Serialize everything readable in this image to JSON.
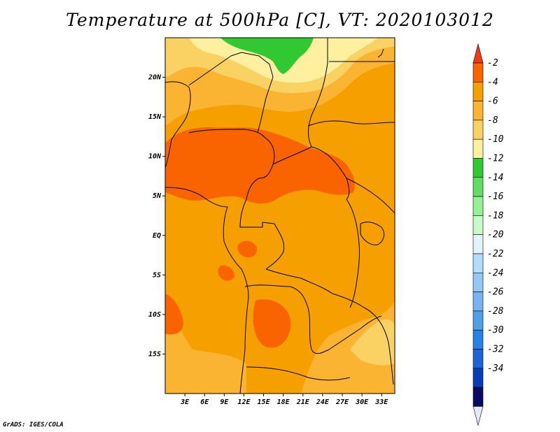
{
  "title": "Temperature at 500hPa [C], VT: 2020103012",
  "credit": "GrADS: IGES/COLA",
  "map": {
    "lon_range": [
      0,
      35
    ],
    "lat_range": [
      -20,
      25
    ],
    "lat_ticks": [
      {
        "value": 20,
        "label": "20N"
      },
      {
        "value": 15,
        "label": "15N"
      },
      {
        "value": 10,
        "label": "10N"
      },
      {
        "value": 5,
        "label": "5N"
      },
      {
        "value": 0,
        "label": "EQ"
      },
      {
        "value": -5,
        "label": "5S"
      },
      {
        "value": -10,
        "label": "10S"
      },
      {
        "value": -15,
        "label": "15S"
      }
    ],
    "lon_ticks": [
      {
        "value": 3,
        "label": "3E"
      },
      {
        "value": 6,
        "label": "6E"
      },
      {
        "value": 9,
        "label": "9E"
      },
      {
        "value": 12,
        "label": "12E"
      },
      {
        "value": 15,
        "label": "15E"
      },
      {
        "value": 18,
        "label": "18E"
      },
      {
        "value": 21,
        "label": "21E"
      },
      {
        "value": 24,
        "label": "24E"
      },
      {
        "value": 27,
        "label": "27E"
      },
      {
        "value": 30,
        "label": "30E"
      },
      {
        "value": 33,
        "label": "33E"
      }
    ]
  },
  "colorbar": {
    "levels": [
      "-2",
      "-4",
      "-6",
      "-8",
      "-10",
      "-12",
      "-14",
      "-16",
      "-18",
      "-20",
      "-22",
      "-24",
      "-26",
      "-28",
      "-30",
      "-32",
      "-34"
    ],
    "colors": [
      "#f03c14",
      "#fa6400",
      "#f5a000",
      "#fab432",
      "#fad264",
      "#fff0a0",
      "#32c832",
      "#64dc64",
      "#96f096",
      "#c8fac8",
      "#e0f4ff",
      "#b4dcff",
      "#96c8f5",
      "#78b4f0",
      "#50a0e6",
      "#2882e6",
      "#1e64d2",
      "#0a3cb4",
      "#0a0a64",
      "#e6e6ff"
    ]
  },
  "palette": {
    "c_m4": "#fa6400",
    "c_m6": "#f5a000",
    "c_m8": "#fab432",
    "c_m10": "#fad264",
    "c_m12": "#fff0a0",
    "c_m14": "#32c832",
    "c_m16": "#64dc64"
  }
}
